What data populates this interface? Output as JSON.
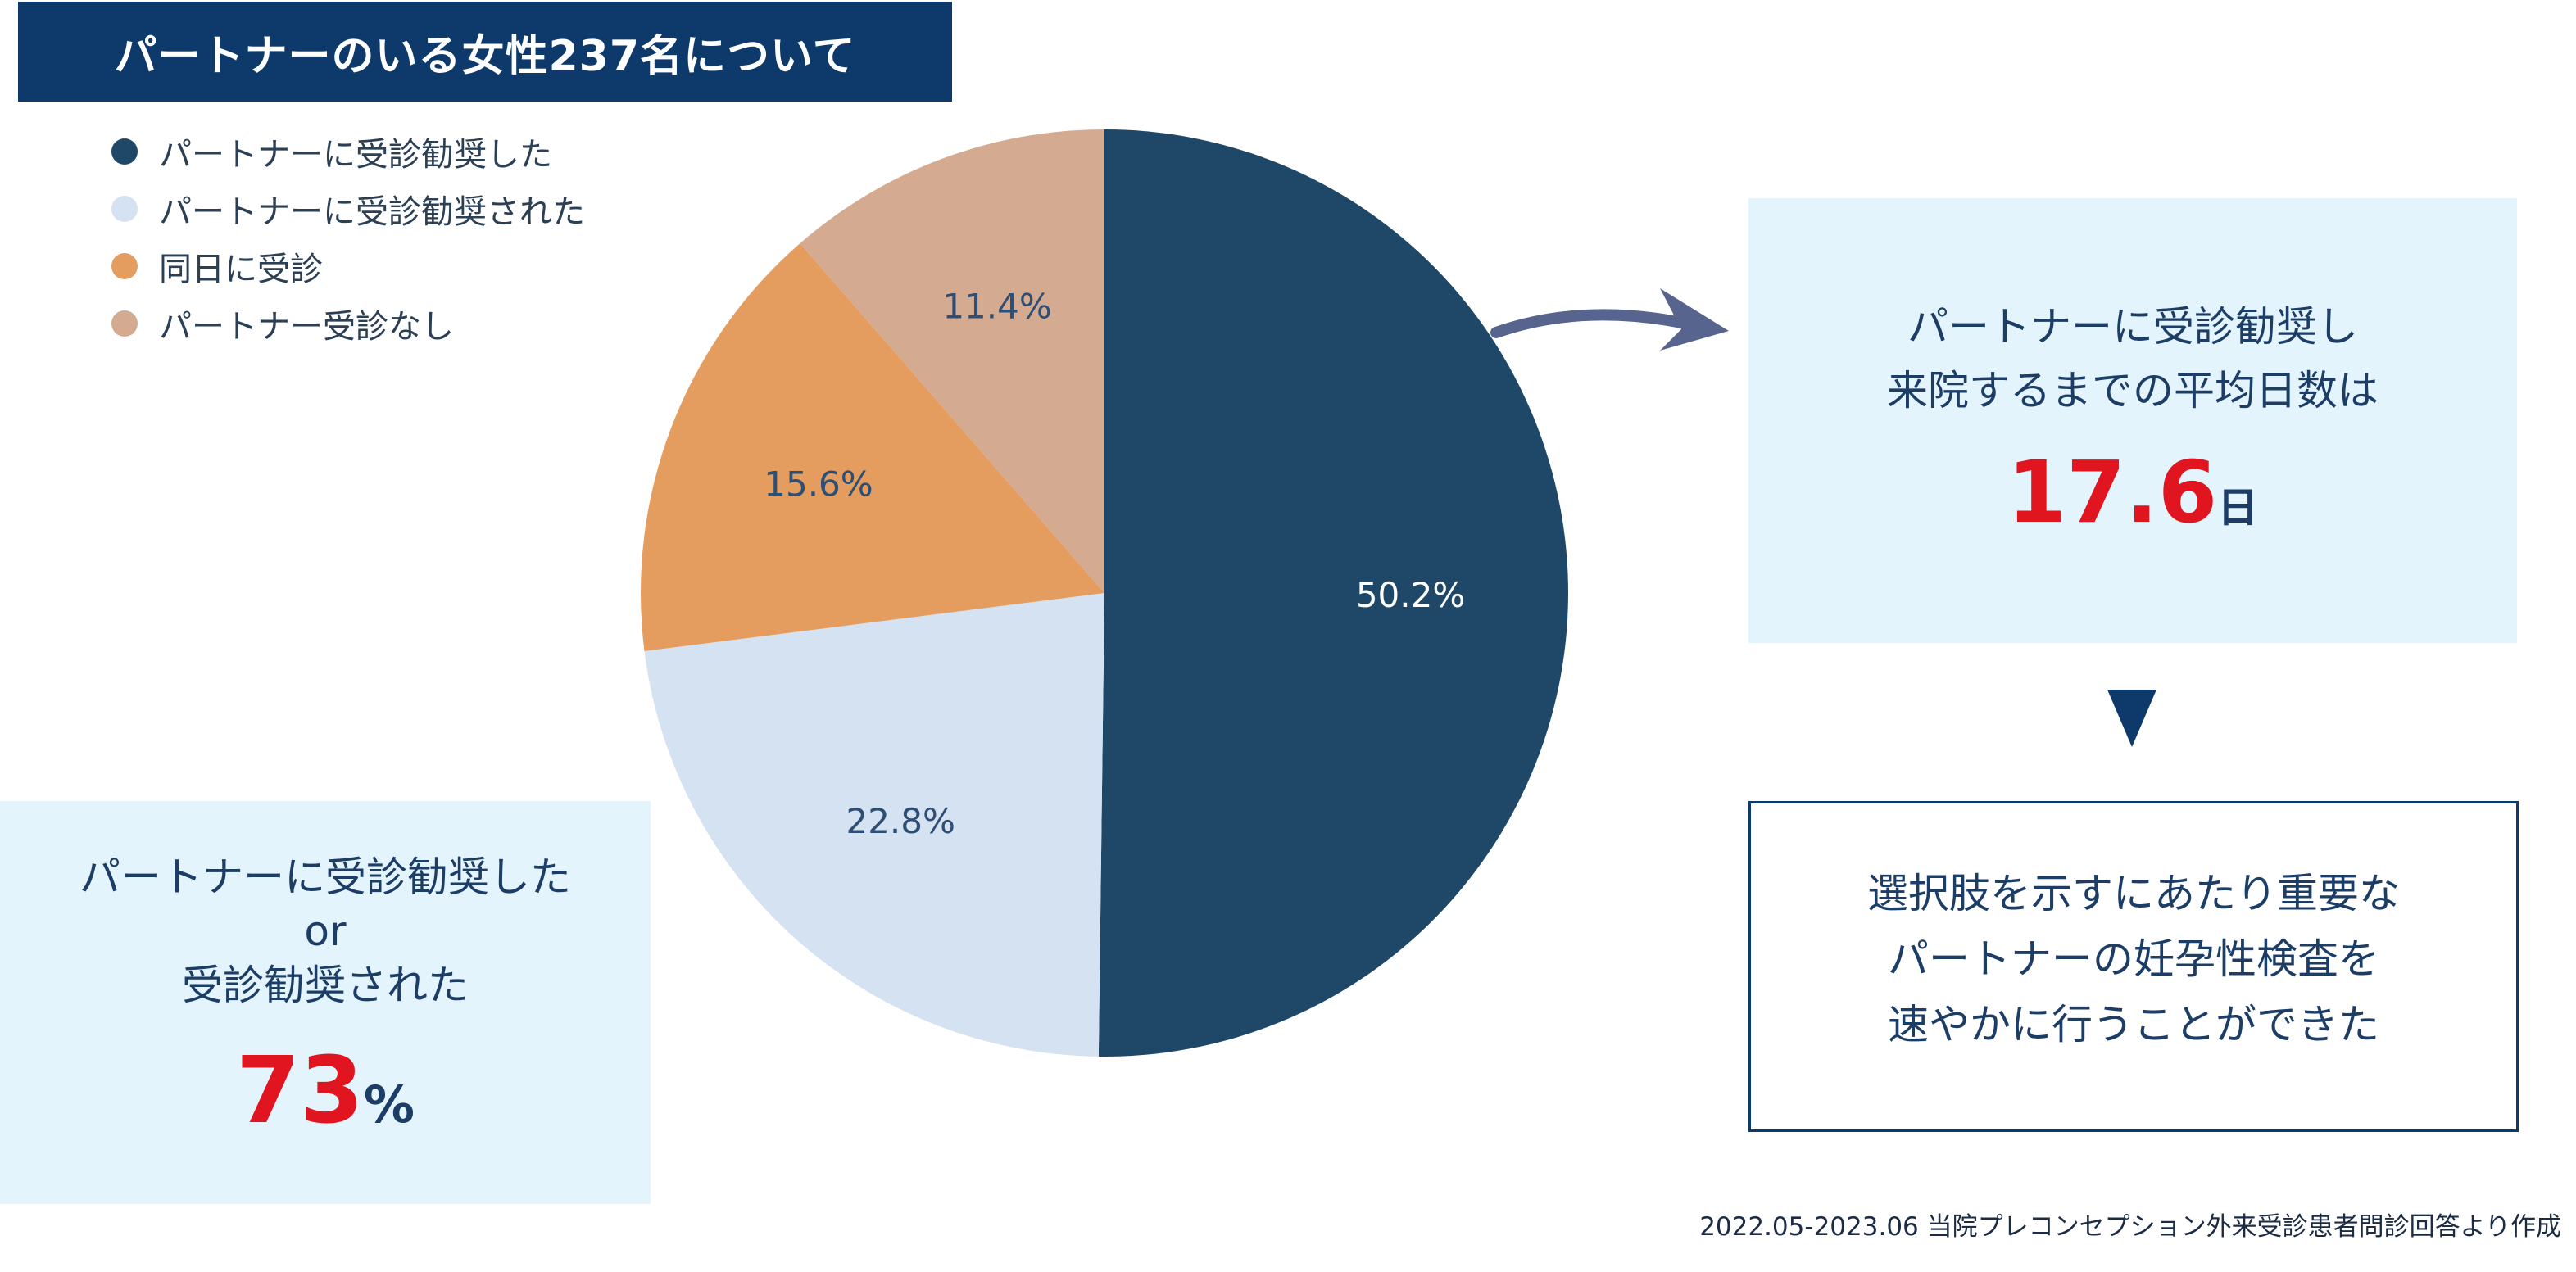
{
  "header": {
    "title": "パートナーのいる女性237名について"
  },
  "chart_data": {
    "type": "pie",
    "categories": [
      "パートナーに受診勧奨した",
      "パートナーに受診勧奨された",
      "同日に受診",
      "パートナー受診なし"
    ],
    "values": [
      50.2,
      22.8,
      15.6,
      11.4
    ],
    "labels": [
      "50.2%",
      "22.8%",
      "15.6%",
      "11.4%"
    ],
    "colors": [
      "#1f4868",
      "#d5e2f1",
      "#e49c5f",
      "#d4ab90"
    ],
    "label_colors": [
      "#ffffff",
      "#2d4e75",
      "#2d4e75",
      "#2d4e75"
    ],
    "start_angle": "12 o'clock",
    "direction": "clockwise",
    "legend_position": "top-left"
  },
  "info_box": {
    "line1": "パートナーに受診勧奨し",
    "line2": "来院するまでの平均日数は",
    "value": "17.6",
    "unit": "日"
  },
  "conclusion_box": {
    "line1": "選択肢を示すにあたり重要な",
    "line2": "パートナーの妊孕性検査を",
    "line3": "速やかに行うことができた"
  },
  "summary_box": {
    "line1": "パートナーに受診勧奨した",
    "line2": "or",
    "line3": "受診勧奨された",
    "value": "73",
    "unit": "%"
  },
  "footnote": "2022.05-2023.06 当院プレコンセプション外来受診患者問診回答より作成",
  "colors": {
    "title_bg": "#0d3a6b",
    "panel_bg": "#e3f4fc",
    "highlight": "#e0151f",
    "arrow": "#56648e"
  }
}
